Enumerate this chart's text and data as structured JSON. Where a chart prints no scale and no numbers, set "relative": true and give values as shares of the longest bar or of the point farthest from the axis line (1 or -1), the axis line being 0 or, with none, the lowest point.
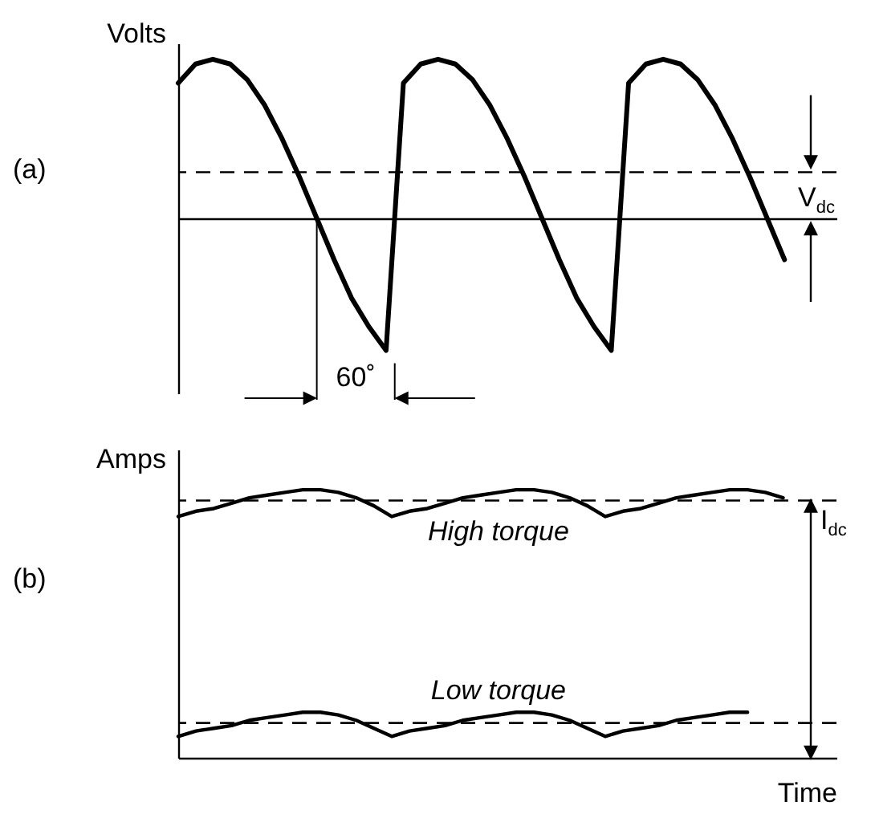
{
  "chart_data": [
    {
      "type": "line",
      "title": "(a)",
      "ylabel": "Volts",
      "relative": true,
      "tick_labels": false,
      "color": "#000000",
      "categories": [
        null,
        null,
        null,
        null,
        null,
        null,
        null,
        null,
        null,
        null,
        null,
        null,
        null,
        null,
        null,
        null,
        null,
        null,
        null,
        null,
        null,
        null,
        null,
        null,
        null,
        null,
        null,
        null,
        null,
        null,
        null,
        null,
        null,
        null,
        null,
        null,
        null,
        null,
        null
      ],
      "values": [
        0.85,
        0.97,
        1,
        0.97,
        0.87,
        0.71,
        0.5,
        0.26,
        0,
        -0.26,
        -0.5,
        -0.68,
        -0.83,
        0.85,
        0.97,
        1,
        0.97,
        0.87,
        0.71,
        0.5,
        0.26,
        0,
        -0.26,
        -0.5,
        -0.68,
        -0.83,
        0.85,
        0.97,
        1,
        0.97,
        0.87,
        0.71,
        0.5,
        0.26,
        0,
        -0.26,
        null,
        null,
        null
      ],
      "ref_lines": [
        {
          "axis": "y",
          "value": 0.29,
          "label": "V$_{dc}$",
          "line_style": "dashed",
          "color": "#000000"
        }
      ],
      "annotations": [
        "60˚"
      ]
    },
    {
      "type": "line",
      "title": "(b)",
      "ylabel": "Amps",
      "xlabel": "Time",
      "relative": true,
      "tick_labels": false,
      "categories": [
        null,
        null,
        null,
        null,
        null,
        null,
        null,
        null,
        null,
        null,
        null,
        null,
        null,
        null,
        null,
        null,
        null,
        null,
        null,
        null,
        null,
        null,
        null,
        null,
        null,
        null,
        null,
        null,
        null,
        null,
        null,
        null,
        null,
        null,
        null,
        null,
        null,
        null
      ],
      "series": [
        {
          "name": "High torque",
          "color": "#000000",
          "values": [
            0.9,
            0.92,
            0.93,
            0.95,
            0.97,
            0.98,
            0.99,
            1,
            1,
            0.99,
            0.97,
            0.94,
            0.9,
            0.92,
            0.93,
            0.95,
            0.97,
            0.98,
            0.99,
            1,
            1,
            0.99,
            0.97,
            0.94,
            0.9,
            0.92,
            0.93,
            0.95,
            0.97,
            0.98,
            0.99,
            1,
            1,
            0.99,
            0.97,
            null,
            null,
            null
          ]
        },
        {
          "name": "Low torque",
          "color": "#000000",
          "values": [
            0.08,
            0.1,
            0.11,
            0.12,
            0.14,
            0.15,
            0.16,
            0.17,
            0.17,
            0.16,
            0.14,
            0.11,
            0.08,
            0.1,
            0.11,
            0.12,
            0.14,
            0.15,
            0.16,
            0.17,
            0.17,
            0.16,
            0.14,
            0.11,
            0.08,
            0.1,
            0.11,
            0.12,
            0.14,
            0.15,
            0.16,
            0.17,
            0.17,
            null,
            null,
            null,
            null,
            null
          ]
        }
      ],
      "ref_lines": [
        {
          "axis": "y",
          "value": 0.96,
          "label": "I$_{dc}$",
          "line_style": "dashed",
          "color": "#000000"
        },
        {
          "axis": "y",
          "value": 0.13,
          "line_style": "dashed",
          "color": "#000000"
        }
      ]
    }
  ]
}
